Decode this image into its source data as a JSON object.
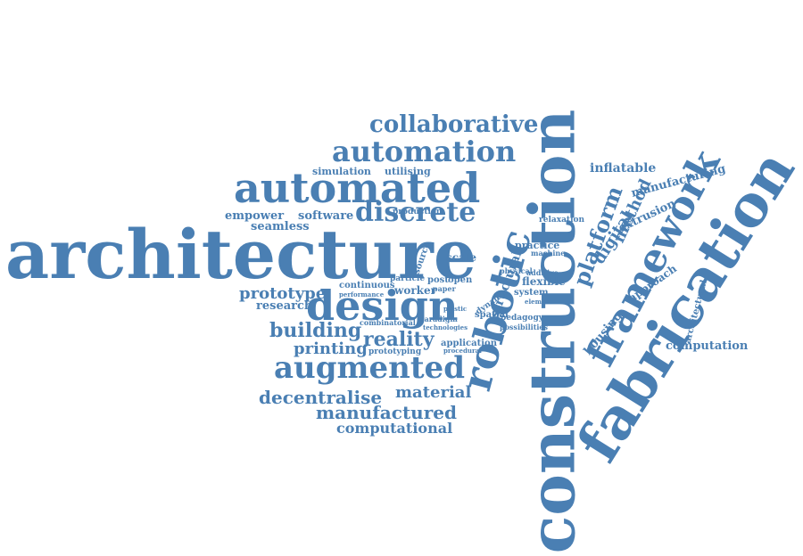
{
  "theme": {
    "word_color": "#4a7fb3",
    "background": "#ffffff"
  },
  "words": [
    "architecture",
    "construction",
    "fabrication",
    "robotic",
    "framework",
    "automated",
    "design",
    "augmented",
    "automation",
    "collaborative",
    "discrete",
    "platform",
    "digital",
    "method",
    "reality",
    "building",
    "printing",
    "prototype",
    "manufactured",
    "decentralise",
    "material",
    "computational",
    "research",
    "empower",
    "software",
    "seamless",
    "simulation",
    "utilising",
    "inflatable",
    "manufacturing",
    "extrusion",
    "approach",
    "housing",
    "computation",
    "architectural",
    "structural",
    "flexible",
    "worker",
    "prototyping",
    "application",
    "continuous",
    "particle",
    "scale",
    "practice",
    "relaxation",
    "production",
    "source",
    "post",
    "open",
    "system",
    "spatial",
    "pedagogy",
    "possibilities",
    "machine",
    "additive",
    "physical",
    "paper",
    "dynamic",
    "combinatorial",
    "paradigm",
    "technologies",
    "performance",
    "procedural",
    "plastic",
    "element"
  ]
}
